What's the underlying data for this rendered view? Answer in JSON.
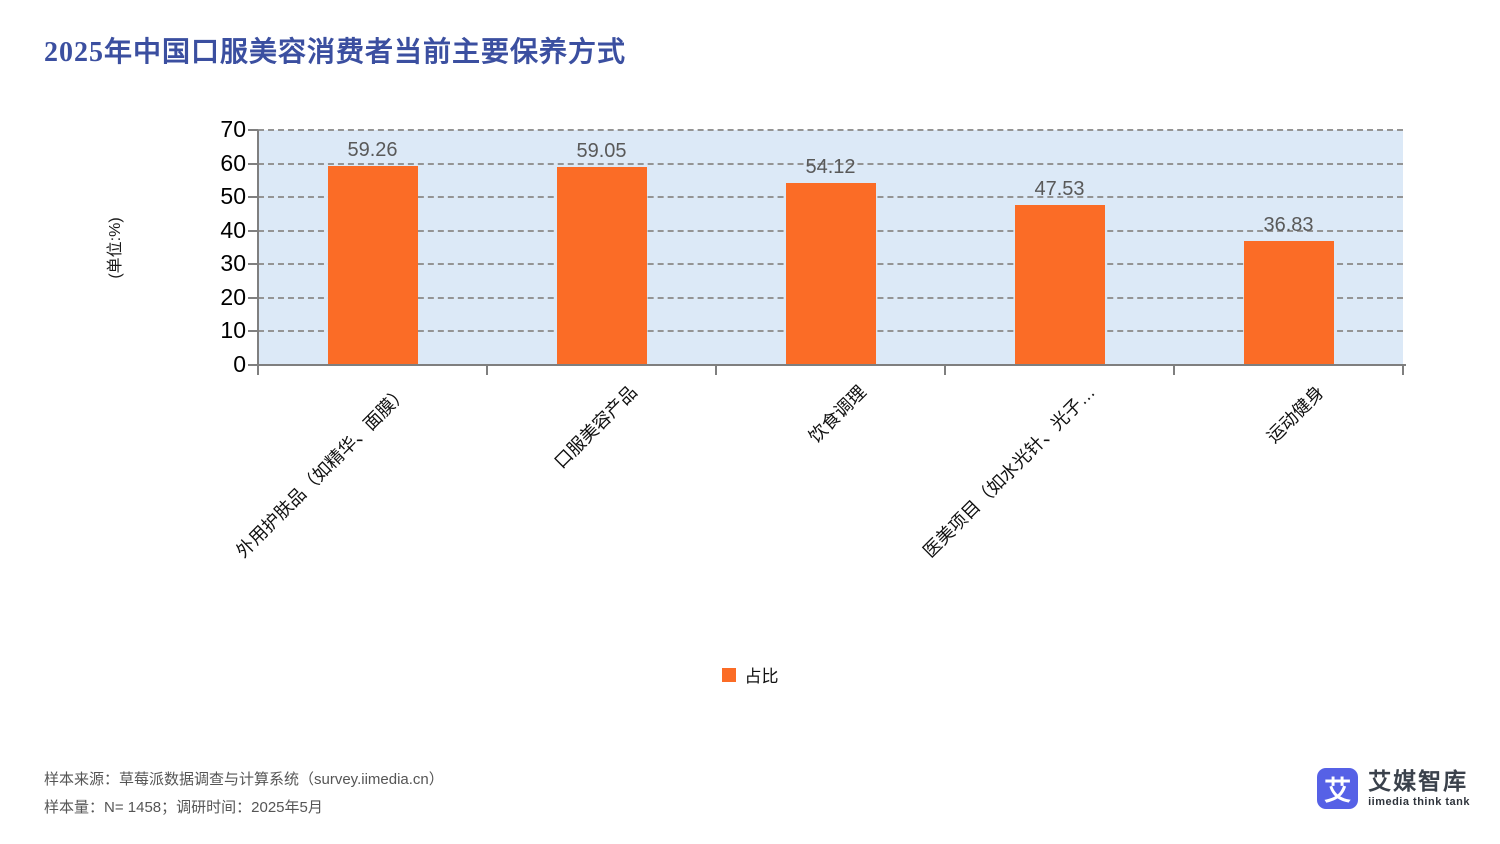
{
  "title": "2025年中国口服美容消费者当前主要保养方式",
  "chart_data": {
    "type": "bar",
    "title": "2025年中国口服美容消费者当前主要保养方式",
    "categories": [
      "外用护肤品（如精华、面膜）",
      "口服美容产品",
      "饮食调理",
      "医美项目（如水光针、光子…",
      "运动健身"
    ],
    "values": [
      59.26,
      59.05,
      54.12,
      47.53,
      36.83
    ],
    "series_name": "占比",
    "xlabel": "",
    "ylabel": "(单位:%)",
    "ylim": [
      0,
      70
    ],
    "yticks": [
      0,
      10,
      20,
      30,
      40,
      50,
      60,
      70
    ],
    "grid": "horizontal-dashed",
    "legend_position": "bottom-center",
    "bar_color": "#FB6C26",
    "plot_background": "#DCE9F7"
  },
  "legend": {
    "label": "占比",
    "color": "#FB6C26"
  },
  "footer": {
    "line1": "样本来源：草莓派数据调查与计算系统（survey.iimedia.cn）",
    "line2": "样本量：N= 1458；调研时间：2025年5月"
  },
  "logo": {
    "glyph": "艾",
    "name_cn": "艾媒智库",
    "name_en": "iimedia think tank"
  },
  "colors": {
    "title": "#3B4FA0",
    "bar": "#FB6C26",
    "plot_background": "#DCE9F7",
    "gridline": "#949494",
    "axis": "#7F7F7F",
    "value_label": "#595959",
    "footer_text": "#555555",
    "logo_blue": "#5661E6"
  }
}
